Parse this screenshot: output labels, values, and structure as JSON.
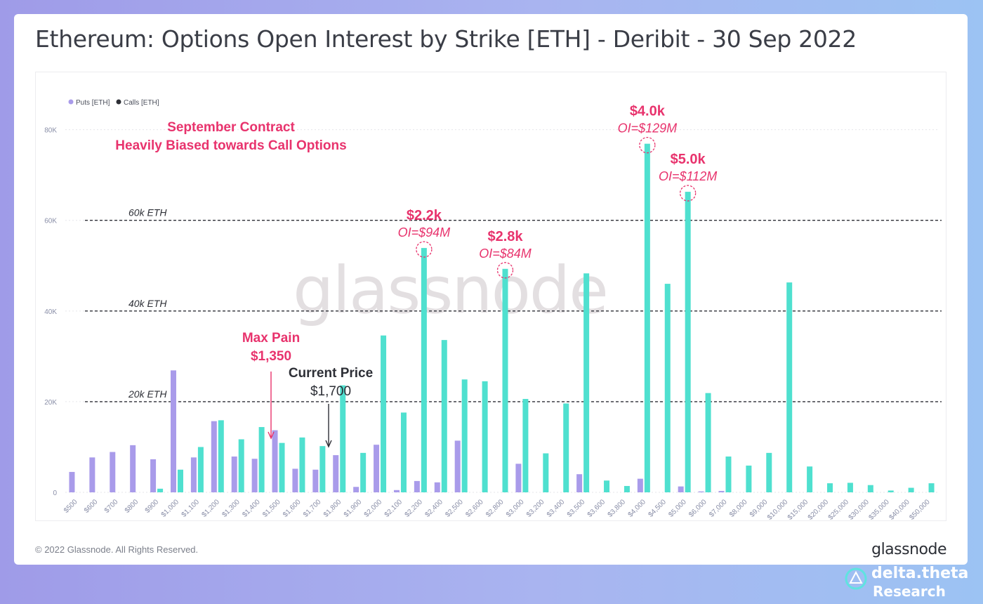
{
  "title": "Ethereum: Options Open Interest by Strike [ETH] - Deribit - 30 Sep 2022",
  "footer": {
    "copyright": "© 2022 Glassnode. All Rights Reserved.",
    "brand": "glassnode",
    "credit_name": "delta.theta",
    "credit_sub": "Research"
  },
  "colors": {
    "puts": "#a99bea",
    "calls": "#4fe0cf",
    "annotation": "#e8336d",
    "axis_text": "#8a8fa8",
    "watermark": "#e3dfe1"
  },
  "watermark": "glassnode",
  "chart_data": {
    "type": "bar",
    "categories": [
      "$500",
      "$600",
      "$700",
      "$800",
      "$900",
      "$1,000",
      "$1,100",
      "$1,200",
      "$1,300",
      "$1,400",
      "$1,500",
      "$1,600",
      "$1,700",
      "$1,800",
      "$1,900",
      "$2,000",
      "$2,100",
      "$2,200",
      "$2,400",
      "$2,500",
      "$2,600",
      "$2,800",
      "$3,000",
      "$3,200",
      "$3,400",
      "$3,500",
      "$3,600",
      "$3,800",
      "$4,000",
      "$4,500",
      "$5,000",
      "$6,000",
      "$7,000",
      "$8,000",
      "$9,000",
      "$10,000",
      "$15,000",
      "$20,000",
      "$25,000",
      "$30,000",
      "$35,000",
      "$40,000",
      "$50,000"
    ],
    "series": [
      {
        "name": "Puts [ETH]",
        "color": "#a99bea",
        "values": [
          4500,
          7700,
          8900,
          10400,
          7300,
          26900,
          7700,
          15700,
          7900,
          7400,
          13700,
          5200,
          5000,
          8200,
          1200,
          10500,
          500,
          2500,
          2200,
          11400,
          0,
          0,
          6300,
          0,
          0,
          4000,
          0,
          0,
          3000,
          0,
          1300,
          200,
          300,
          0,
          0,
          0,
          0,
          0,
          0,
          0,
          0,
          0,
          0
        ]
      },
      {
        "name": "Calls [ETH]",
        "color": "#4fe0cf",
        "values": [
          0,
          0,
          0,
          0,
          800,
          5000,
          10000,
          15900,
          11700,
          14400,
          10900,
          12100,
          10200,
          23600,
          8700,
          34600,
          17600,
          53900,
          33600,
          24900,
          24500,
          49300,
          20600,
          8600,
          19600,
          48300,
          2600,
          1400,
          76900,
          46000,
          66300,
          21900,
          7900,
          5900,
          8700,
          46300,
          5700,
          2000,
          2100,
          1600,
          400,
          1000,
          2000
        ]
      }
    ],
    "ylim": [
      0,
      88000
    ],
    "yticks": [
      0,
      20000,
      40000,
      60000,
      80000
    ],
    "ytick_labels": [
      "0",
      "20K",
      "40K",
      "60K",
      "80K"
    ],
    "grid": true,
    "legend_position": "top-left",
    "reference_lines": [
      {
        "value": 20000,
        "label": "20k ETH"
      },
      {
        "value": 40000,
        "label": "40k ETH"
      },
      {
        "value": 60000,
        "label": "60k ETH"
      }
    ],
    "annotations": {
      "headline": [
        "September Contract",
        "Heavily Biased towards Call Options"
      ],
      "max_pain": {
        "title": "Max Pain",
        "value": "$1,350"
      },
      "current_price": {
        "title": "Current Price",
        "value": "$1,700"
      },
      "peaks": [
        {
          "category": "$2,200",
          "label": "$2.2k",
          "oi": "OI=$94M"
        },
        {
          "category": "$2,800",
          "label": "$2.8k",
          "oi": "OI=$84M"
        },
        {
          "category": "$4,000",
          "label": "$4.0k",
          "oi": "OI=$129M"
        },
        {
          "category": "$5,000",
          "label": "$5.0k",
          "oi": "OI=$112M"
        }
      ]
    }
  }
}
